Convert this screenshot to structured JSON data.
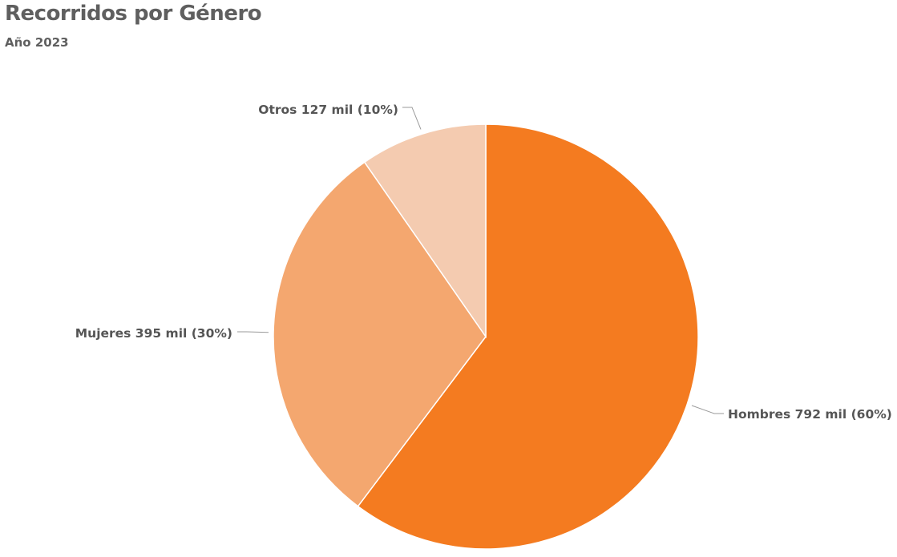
{
  "chart": {
    "title": "Recorridos por Género",
    "subtitle": "Año 2023"
  },
  "chart_data": {
    "type": "pie",
    "title": "Recorridos por Género",
    "subtitle": "Año 2023",
    "start_angle_deg": 0,
    "direction": "clockwise",
    "legend": "none",
    "slices": [
      {
        "name": "Hombres",
        "value": 792,
        "value_label": "792 mil",
        "percent": 60,
        "label": "Hombres 792 mil (60%)",
        "color": "#f47b20"
      },
      {
        "name": "Mujeres",
        "value": 395,
        "value_label": "395 mil",
        "percent": 30,
        "label": "Mujeres 395 mil (30%)",
        "color": "#f4a76f"
      },
      {
        "name": "Otros",
        "value": 127,
        "value_label": "127 mil",
        "percent": 10,
        "label": "Otros 127 mil (10%)",
        "color": "#f4cbb0"
      }
    ]
  }
}
